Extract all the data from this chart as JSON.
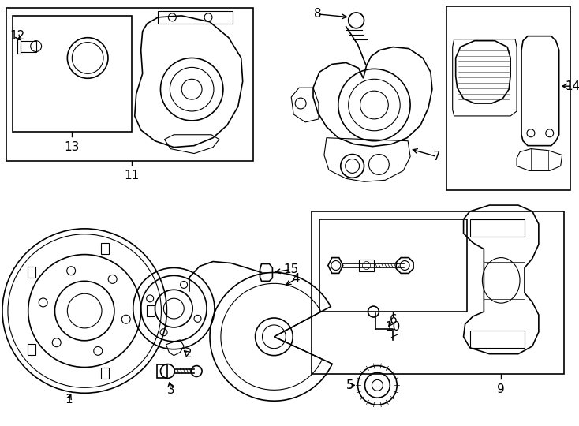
{
  "bg_color": "#ffffff",
  "line_color": "#000000",
  "fig_width": 7.34,
  "fig_height": 5.4,
  "dpi": 100,
  "label_fontsize": 11,
  "lw_main": 1.2,
  "lw_detail": 0.8,
  "lw_thin": 0.5
}
